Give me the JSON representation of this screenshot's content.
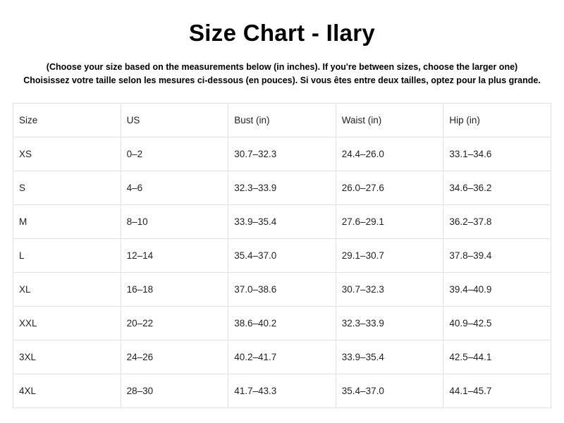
{
  "title": "Size Chart - Ilary",
  "subtitle_en": "(Choose your size based on the measurements below (in inches). If you're between sizes, choose the larger one)",
  "subtitle_fr": "Choisissez votre taille selon les mesures ci-dessous (en pouces). Si vous êtes entre deux tailles, optez pour la plus grande.",
  "table": {
    "headers": [
      "Size",
      "US",
      "Bust (in)",
      "Waist (in)",
      "Hip (in)"
    ],
    "rows": [
      [
        "XS",
        "0–2",
        "30.7–32.3",
        "24.4–26.0",
        "33.1–34.6"
      ],
      [
        "S",
        "4–6",
        "32.3–33.9",
        "26.0–27.6",
        "34.6–36.2"
      ],
      [
        "M",
        "8–10",
        "33.9–35.4",
        "27.6–29.1",
        "36.2–37.8"
      ],
      [
        "L",
        "12–14",
        "35.4–37.0",
        "29.1–30.7",
        "37.8–39.4"
      ],
      [
        "XL",
        "16–18",
        "37.0–38.6",
        "30.7–32.3",
        "39.4–40.9"
      ],
      [
        "XXL",
        "20–22",
        "38.6–40.2",
        "32.3–33.9",
        "40.9–42.5"
      ],
      [
        "3XL",
        "24–26",
        "40.2–41.7",
        "33.9–35.4",
        "42.5–44.1"
      ],
      [
        "4XL",
        "28–30",
        "41.7–43.3",
        "35.4–37.0",
        "44.1–45.7"
      ]
    ]
  }
}
